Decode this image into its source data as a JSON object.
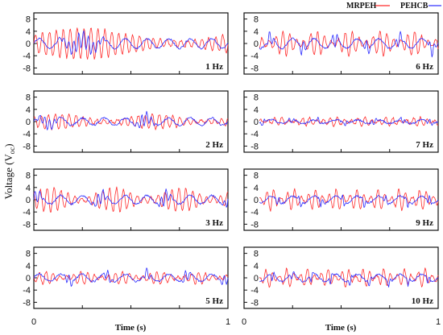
{
  "chart_data": {
    "type": "line",
    "y_label_main": "Voltage (V",
    "y_label_sub": "oc",
    "y_label_close": ")",
    "xlabel": "Time (s)",
    "xlim": [
      0,
      1
    ],
    "ylim": [
      -10,
      10
    ],
    "y_ticks": [
      8,
      4,
      0,
      -4,
      -8
    ],
    "x_tick_labels": [
      "0",
      "1"
    ],
    "legend": {
      "placement": "top-right",
      "entries": [
        {
          "name": "MRPEH",
          "color": "#ff2a2a"
        },
        {
          "name": "PEHCB",
          "color": "#2a2aff"
        }
      ]
    },
    "panels": [
      {
        "label": "1 Hz",
        "column": 0,
        "row": 0
      },
      {
        "label": "2 Hz",
        "column": 0,
        "row": 1
      },
      {
        "label": "3 Hz",
        "column": 0,
        "row": 2
      },
      {
        "label": "5 Hz",
        "column": 0,
        "row": 3
      },
      {
        "label": "6 Hz",
        "column": 1,
        "row": 0
      },
      {
        "label": "7 Hz",
        "column": 1,
        "row": 1
      },
      {
        "label": "9 Hz",
        "column": 1,
        "row": 2
      },
      {
        "label": "10 Hz",
        "column": 1,
        "row": 3
      }
    ],
    "series": [
      {
        "name": "MRPEH",
        "color": "#ff2a2a",
        "approx_amplitude_V": [
          5,
          2.5,
          4,
          2,
          4,
          1.5,
          3.5,
          3
        ]
      },
      {
        "name": "PEHCB",
        "color": "#2a2aff",
        "approx_amplitude_V": [
          4,
          3,
          3.5,
          3,
          4,
          1.5,
          3,
          3
        ]
      }
    ]
  }
}
